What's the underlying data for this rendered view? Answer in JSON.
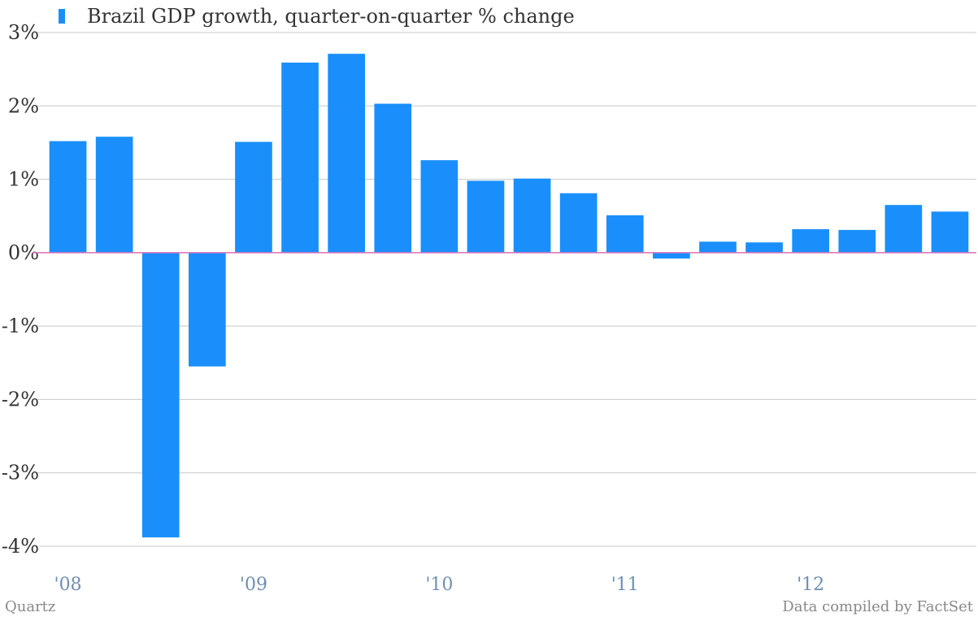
{
  "legend": {
    "label": "Brazil GDP growth, quarter-on-quarter % change"
  },
  "source": "Data compiled by FactSet",
  "publisher": "Quartz",
  "colors": {
    "bar": "#1a8ffb",
    "zero_line": "#d96fb8",
    "grid": "#c8c8c8",
    "xtick": "#6f8fb0",
    "ytick": "#333333"
  },
  "chart_data": {
    "type": "bar",
    "title": "",
    "xlabel": "",
    "ylabel": "",
    "categories": [
      "Q1 2008",
      "Q2 2008",
      "Q3 2008",
      "Q4 2008",
      "Q1 2009",
      "Q2 2009",
      "Q3 2009",
      "Q4 2009",
      "Q1 2010",
      "Q2 2010",
      "Q3 2010",
      "Q4 2010",
      "Q1 2011",
      "Q2 2011",
      "Q3 2011",
      "Q4 2011",
      "Q1 2012",
      "Q2 2012",
      "Q3 2012",
      "Q4 2012"
    ],
    "values": [
      1.52,
      1.58,
      -3.88,
      -1.55,
      1.51,
      2.59,
      2.71,
      2.03,
      1.26,
      0.98,
      1.01,
      0.81,
      0.51,
      -0.08,
      0.15,
      0.14,
      0.32,
      0.31,
      0.65,
      0.56
    ],
    "ylim": [
      -4,
      3
    ],
    "yticks": [
      3,
      2,
      1,
      0,
      -1,
      -2,
      -3,
      -4
    ],
    "ytick_labels": [
      "3%",
      "2%",
      "1%",
      "0%",
      "-1%",
      "-2%",
      "-3%",
      "-4%"
    ],
    "xtick_labels": [
      "'08",
      "'09",
      "'10",
      "'11",
      "'12"
    ],
    "xtick_positions": [
      0,
      4,
      8,
      12,
      16
    ],
    "grid": true,
    "legend_position": "top-left"
  }
}
